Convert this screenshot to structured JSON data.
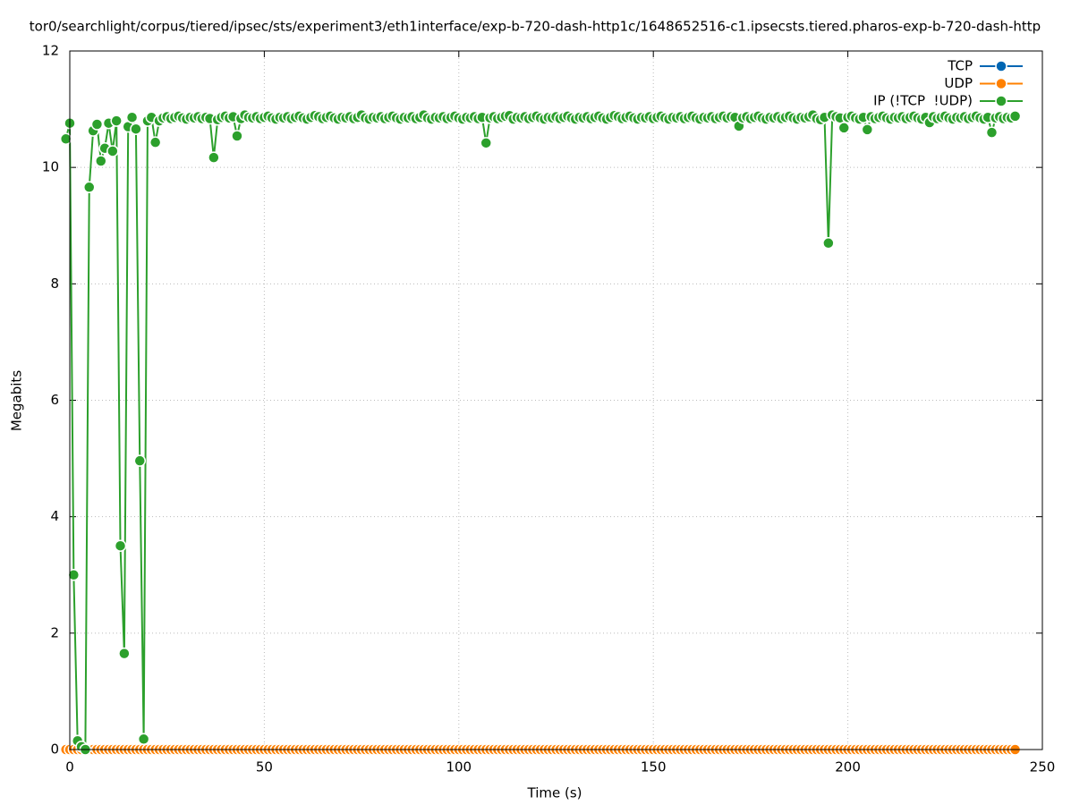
{
  "chart_data": {
    "type": "line",
    "title": "tor0/searchlight/corpus/tiered/ipsec/sts/experiment3/eth1interface/exp-b-720-dash-http1c/1648652516-c1.ipsecsts.tiered.pharos-exp-b-720-dash-http",
    "x_label": "Time (s)",
    "y_label": "Megabits",
    "xlim": [
      0,
      250
    ],
    "ylim": [
      0,
      12
    ],
    "xticks": [
      0,
      50,
      100,
      150,
      200,
      250
    ],
    "yticks": [
      0,
      2,
      4,
      6,
      8,
      10,
      12
    ],
    "grid": true,
    "legend": "top-right",
    "x": [
      -1,
      0,
      1,
      2,
      3,
      4,
      5,
      6,
      7,
      8,
      9,
      10,
      11,
      12,
      13,
      14,
      15,
      16,
      17,
      18,
      19,
      20,
      21,
      22,
      23,
      24,
      25,
      26,
      27,
      28,
      29,
      30,
      31,
      32,
      33,
      34,
      35,
      36,
      37,
      38,
      39,
      40,
      41,
      42,
      43,
      44,
      45,
      46,
      47,
      48,
      49,
      50,
      51,
      52,
      53,
      54,
      55,
      56,
      57,
      58,
      59,
      60,
      61,
      62,
      63,
      64,
      65,
      66,
      67,
      68,
      69,
      70,
      71,
      72,
      73,
      74,
      75,
      76,
      77,
      78,
      79,
      80,
      81,
      82,
      83,
      84,
      85,
      86,
      87,
      88,
      89,
      90,
      91,
      92,
      93,
      94,
      95,
      96,
      97,
      98,
      99,
      100,
      101,
      102,
      103,
      104,
      105,
      106,
      107,
      108,
      109,
      110,
      111,
      112,
      113,
      114,
      115,
      116,
      117,
      118,
      119,
      120,
      121,
      122,
      123,
      124,
      125,
      126,
      127,
      128,
      129,
      130,
      131,
      132,
      133,
      134,
      135,
      136,
      137,
      138,
      139,
      140,
      141,
      142,
      143,
      144,
      145,
      146,
      147,
      148,
      149,
      150,
      151,
      152,
      153,
      154,
      155,
      156,
      157,
      158,
      159,
      160,
      161,
      162,
      163,
      164,
      165,
      166,
      167,
      168,
      169,
      170,
      171,
      172,
      173,
      174,
      175,
      176,
      177,
      178,
      179,
      180,
      181,
      182,
      183,
      184,
      185,
      186,
      187,
      188,
      189,
      190,
      191,
      192,
      193,
      194,
      195,
      196,
      197,
      198,
      199,
      200,
      201,
      202,
      203,
      204,
      205,
      206,
      207,
      208,
      209,
      210,
      211,
      212,
      213,
      214,
      215,
      216,
      217,
      218,
      219,
      220,
      221,
      222,
      223,
      224,
      225,
      226,
      227,
      228,
      229,
      230,
      231,
      232,
      233,
      234,
      235,
      236,
      237,
      238,
      239,
      240,
      241,
      242,
      243
    ],
    "series": [
      {
        "name": "TCP",
        "color": "#0066b3",
        "values": [
          0,
          0,
          0,
          0,
          0,
          0,
          0,
          0,
          0,
          0,
          0,
          0,
          0,
          0,
          0,
          0,
          0,
          0,
          0,
          0,
          0,
          0,
          0,
          0,
          0,
          0,
          0,
          0,
          0,
          0,
          0,
          0,
          0,
          0,
          0,
          0,
          0,
          0,
          0,
          0,
          0,
          0,
          0,
          0,
          0,
          0,
          0,
          0,
          0,
          0,
          0,
          0,
          0,
          0,
          0,
          0,
          0,
          0,
          0,
          0,
          0,
          0,
          0,
          0,
          0,
          0,
          0,
          0,
          0,
          0,
          0,
          0,
          0,
          0,
          0,
          0,
          0,
          0,
          0,
          0,
          0,
          0,
          0,
          0,
          0,
          0,
          0,
          0,
          0,
          0,
          0,
          0,
          0,
          0,
          0,
          0,
          0,
          0,
          0,
          0,
          0,
          0,
          0,
          0,
          0,
          0,
          0,
          0,
          0,
          0,
          0,
          0,
          0,
          0,
          0,
          0,
          0,
          0,
          0,
          0,
          0,
          0,
          0,
          0,
          0,
          0,
          0,
          0,
          0,
          0,
          0,
          0,
          0,
          0,
          0,
          0,
          0,
          0,
          0,
          0,
          0,
          0,
          0,
          0,
          0,
          0,
          0,
          0,
          0,
          0,
          0,
          0,
          0,
          0,
          0,
          0,
          0,
          0,
          0,
          0,
          0,
          0,
          0,
          0,
          0,
          0,
          0,
          0,
          0,
          0,
          0,
          0,
          0,
          0,
          0,
          0,
          0,
          0,
          0,
          0,
          0,
          0,
          0,
          0,
          0,
          0,
          0,
          0,
          0,
          0,
          0,
          0,
          0,
          0,
          0,
          0,
          0,
          0,
          0,
          0,
          0,
          0,
          0,
          0,
          0,
          0,
          0,
          0,
          0,
          0,
          0,
          0,
          0,
          0,
          0,
          0,
          0,
          0,
          0,
          0,
          0,
          0,
          0,
          0,
          0,
          0,
          0,
          0,
          0,
          0,
          0,
          0,
          0,
          0,
          0,
          0,
          0,
          0,
          0,
          0,
          0,
          0,
          0,
          0,
          0
        ]
      },
      {
        "name": "UDP",
        "color": "#ff8000",
        "values": [
          0,
          0,
          0,
          0,
          0,
          0,
          0,
          0,
          0,
          0,
          0,
          0,
          0,
          0,
          0,
          0,
          0,
          0,
          0,
          0,
          0,
          0,
          0,
          0,
          0,
          0,
          0,
          0,
          0,
          0,
          0,
          0,
          0,
          0,
          0,
          0,
          0,
          0,
          0,
          0,
          0,
          0,
          0,
          0,
          0,
          0,
          0,
          0,
          0,
          0,
          0,
          0,
          0,
          0,
          0,
          0,
          0,
          0,
          0,
          0,
          0,
          0,
          0,
          0,
          0,
          0,
          0,
          0,
          0,
          0,
          0,
          0,
          0,
          0,
          0,
          0,
          0,
          0,
          0,
          0,
          0,
          0,
          0,
          0,
          0,
          0,
          0,
          0,
          0,
          0,
          0,
          0,
          0,
          0,
          0,
          0,
          0,
          0,
          0,
          0,
          0,
          0,
          0,
          0,
          0,
          0,
          0,
          0,
          0,
          0,
          0,
          0,
          0,
          0,
          0,
          0,
          0,
          0,
          0,
          0,
          0,
          0,
          0,
          0,
          0,
          0,
          0,
          0,
          0,
          0,
          0,
          0,
          0,
          0,
          0,
          0,
          0,
          0,
          0,
          0,
          0,
          0,
          0,
          0,
          0,
          0,
          0,
          0,
          0,
          0,
          0,
          0,
          0,
          0,
          0,
          0,
          0,
          0,
          0,
          0,
          0,
          0,
          0,
          0,
          0,
          0,
          0,
          0,
          0,
          0,
          0,
          0,
          0,
          0,
          0,
          0,
          0,
          0,
          0,
          0,
          0,
          0,
          0,
          0,
          0,
          0,
          0,
          0,
          0,
          0,
          0,
          0,
          0,
          0,
          0,
          0,
          0,
          0,
          0,
          0,
          0,
          0,
          0,
          0,
          0,
          0,
          0,
          0,
          0,
          0,
          0,
          0,
          0,
          0,
          0,
          0,
          0,
          0,
          0,
          0,
          0,
          0,
          0,
          0,
          0,
          0,
          0,
          0,
          0,
          0,
          0,
          0,
          0,
          0,
          0,
          0,
          0,
          0,
          0,
          0,
          0,
          0,
          0,
          0,
          0
        ]
      },
      {
        "name": "IP (!TCP  !UDP)",
        "color": "#2ca02c",
        "values": [
          10.49,
          10.76,
          3.0,
          0.15,
          0.05,
          0,
          9.66,
          10.63,
          10.74,
          10.11,
          10.33,
          10.76,
          10.28,
          10.8,
          3.5,
          1.65,
          10.7,
          10.86,
          10.66,
          4.96,
          0.18,
          10.8,
          10.86,
          10.43,
          10.8,
          10.85,
          10.87,
          10.84,
          10.86,
          10.88,
          10.85,
          10.83,
          10.86,
          10.85,
          10.87,
          10.84,
          10.86,
          10.84,
          10.17,
          10.82,
          10.86,
          10.88,
          10.85,
          10.87,
          10.54,
          10.84,
          10.9,
          10.86,
          10.85,
          10.87,
          10.84,
          10.86,
          10.88,
          10.85,
          10.83,
          10.86,
          10.85,
          10.87,
          10.84,
          10.86,
          10.88,
          10.85,
          10.83,
          10.86,
          10.89,
          10.87,
          10.84,
          10.86,
          10.88,
          10.85,
          10.83,
          10.86,
          10.85,
          10.87,
          10.84,
          10.86,
          10.9,
          10.85,
          10.83,
          10.86,
          10.85,
          10.87,
          10.84,
          10.86,
          10.88,
          10.85,
          10.83,
          10.86,
          10.85,
          10.87,
          10.84,
          10.86,
          10.9,
          10.85,
          10.83,
          10.86,
          10.85,
          10.87,
          10.84,
          10.86,
          10.88,
          10.85,
          10.83,
          10.86,
          10.85,
          10.87,
          10.84,
          10.86,
          10.42,
          10.85,
          10.87,
          10.84,
          10.86,
          10.88,
          10.89,
          10.83,
          10.86,
          10.85,
          10.87,
          10.84,
          10.86,
          10.88,
          10.85,
          10.83,
          10.86,
          10.85,
          10.87,
          10.84,
          10.86,
          10.88,
          10.85,
          10.83,
          10.86,
          10.85,
          10.87,
          10.84,
          10.86,
          10.88,
          10.85,
          10.83,
          10.86,
          10.89,
          10.87,
          10.84,
          10.86,
          10.88,
          10.85,
          10.83,
          10.86,
          10.85,
          10.87,
          10.84,
          10.86,
          10.88,
          10.85,
          10.83,
          10.86,
          10.85,
          10.87,
          10.84,
          10.86,
          10.88,
          10.85,
          10.83,
          10.86,
          10.85,
          10.87,
          10.84,
          10.86,
          10.88,
          10.85,
          10.87,
          10.86,
          10.71,
          10.85,
          10.87,
          10.84,
          10.86,
          10.88,
          10.85,
          10.83,
          10.86,
          10.85,
          10.87,
          10.84,
          10.86,
          10.88,
          10.85,
          10.83,
          10.86,
          10.85,
          10.87,
          10.9,
          10.84,
          10.82,
          10.86,
          8.7,
          10.9,
          10.87,
          10.85,
          10.68,
          10.86,
          10.88,
          10.85,
          10.83,
          10.86,
          10.65,
          10.87,
          10.84,
          10.86,
          10.88,
          10.85,
          10.83,
          10.86,
          10.85,
          10.87,
          10.84,
          10.86,
          10.88,
          10.85,
          10.83,
          10.86,
          10.77,
          10.87,
          10.84,
          10.86,
          10.88,
          10.85,
          10.83,
          10.86,
          10.85,
          10.87,
          10.84,
          10.86,
          10.88,
          10.85,
          10.83,
          10.86,
          10.6,
          10.85,
          10.87,
          10.84,
          10.86,
          10.85,
          10.88
        ]
      }
    ]
  }
}
